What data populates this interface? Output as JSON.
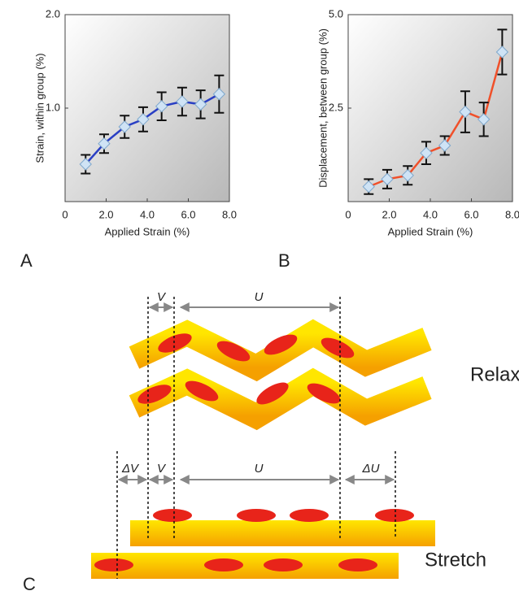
{
  "chart_data": [
    {
      "type": "line",
      "xlabel": "Applied Strain (%)",
      "ylabel": "Strain, within group (%)",
      "x": [
        1.0,
        1.9,
        2.9,
        3.8,
        4.7,
        5.7,
        6.6,
        7.5
      ],
      "series": [
        {
          "color": "#2a3fc4",
          "values": [
            0.4,
            0.62,
            0.8,
            0.88,
            1.02,
            1.07,
            1.04,
            1.15
          ],
          "errors": [
            0.1,
            0.1,
            0.12,
            0.13,
            0.15,
            0.15,
            0.15,
            0.2
          ]
        }
      ],
      "xlim": [
        0,
        8
      ],
      "xticks": [
        0,
        {
          "value": 2,
          "label": "2.0"
        },
        {
          "value": 4,
          "label": "4.0"
        },
        {
          "value": 6,
          "label": "6.0"
        },
        {
          "value": 8,
          "label": "8.0"
        }
      ],
      "ylim": [
        0,
        2
      ],
      "yticks": [
        {
          "value": 1,
          "label": "1.0"
        },
        {
          "value": 2,
          "label": "2.0"
        }
      ]
    },
    {
      "type": "line",
      "xlabel": "Applied Strain (%)",
      "ylabel": "Displacement, between group (%)",
      "x": [
        1.0,
        1.9,
        2.9,
        3.8,
        4.7,
        5.7,
        6.6,
        7.5
      ],
      "series": [
        {
          "color": "#f0502a",
          "values": [
            0.4,
            0.6,
            0.7,
            1.3,
            1.5,
            2.4,
            2.2,
            4.0
          ],
          "errors": [
            0.2,
            0.25,
            0.25,
            0.3,
            0.25,
            0.55,
            0.45,
            0.6
          ]
        }
      ],
      "xlim": [
        0,
        8
      ],
      "xticks": [
        0,
        {
          "value": 2,
          "label": "2.0"
        },
        {
          "value": 4,
          "label": "4.0"
        },
        {
          "value": 6,
          "label": "6.0"
        },
        {
          "value": 8,
          "label": "8.0"
        }
      ],
      "ylim": [
        0,
        5
      ],
      "yticks": [
        2.5,
        {
          "value": 5,
          "label": "5.0"
        }
      ]
    }
  ],
  "panel_labels": [
    "A",
    "B",
    "C"
  ],
  "diagram": {
    "relax": {
      "label": "Relax",
      "dims": [
        "V",
        "U"
      ]
    },
    "stretch": {
      "label": "Stretch",
      "dims": [
        "ΔV",
        "V",
        "U",
        "ΔU"
      ]
    }
  }
}
